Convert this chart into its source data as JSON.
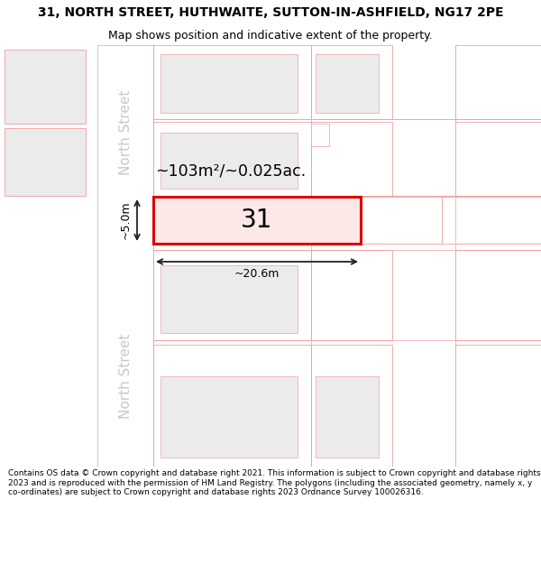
{
  "title_line1": "31, NORTH STREET, HUTHWAITE, SUTTON-IN-ASHFIELD, NG17 2PE",
  "title_line2": "Map shows position and indicative extent of the property.",
  "footer_text": "Contains OS data © Crown copyright and database right 2021. This information is subject to Crown copyright and database rights 2023 and is reproduced with the permission of HM Land Registry. The polygons (including the associated geometry, namely x, y co-ordinates) are subject to Crown copyright and database rights 2023 Ordnance Survey 100026316.",
  "background_color": "#ffffff",
  "map_bg": "#ffffff",
  "property_fill": "#fde8e8",
  "property_edge": "#dd0000",
  "neighbor_fill": "#ebebeb",
  "neighbor_edge": "#f0a0a0",
  "street_label_color": "#c8c8c8",
  "road_edge": "#cccccc",
  "area_label": "~103m²/~0.025ac.",
  "width_label": "~20.6m",
  "height_label": "~5.0m",
  "property_number": "31",
  "north_street_label": "North Street"
}
